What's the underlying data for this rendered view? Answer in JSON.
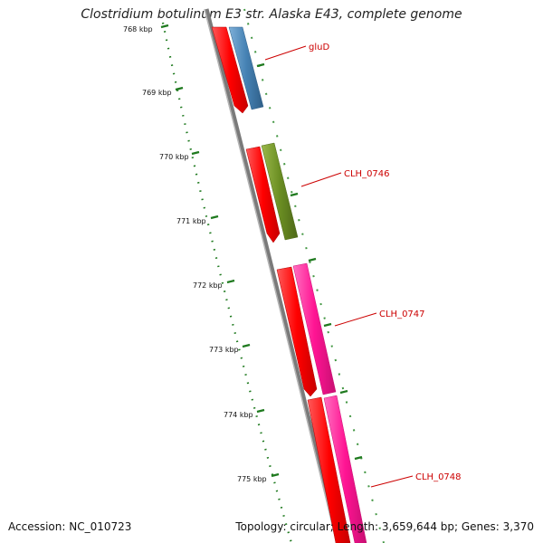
{
  "title": "Clostridium botulinum E3 str. Alaska E43, complete genome",
  "footer": {
    "accession": "Accession: NC_010723",
    "topology": "Topology: circular; Length: 3,659,644 bp; Genes: 3,370"
  },
  "ruler": {
    "unit": "kbp",
    "ticks": [
      "768 kbp",
      "769 kbp",
      "770 kbp",
      "771 kbp",
      "772 kbp",
      "773 kbp",
      "774 kbp",
      "775 kbp"
    ]
  },
  "genes": [
    {
      "name": "gluD",
      "color": "#4682b4"
    },
    {
      "name": "CLH_0746",
      "color": "#6b8e23"
    },
    {
      "name": "CLH_0747",
      "color": "#ff1493"
    },
    {
      "name": "CLH_0748",
      "color": "#ff1493"
    }
  ],
  "colors": {
    "cds": "#ff0000",
    "backbone": "#808080",
    "ruler": "#006400",
    "label": "#cc0000"
  }
}
